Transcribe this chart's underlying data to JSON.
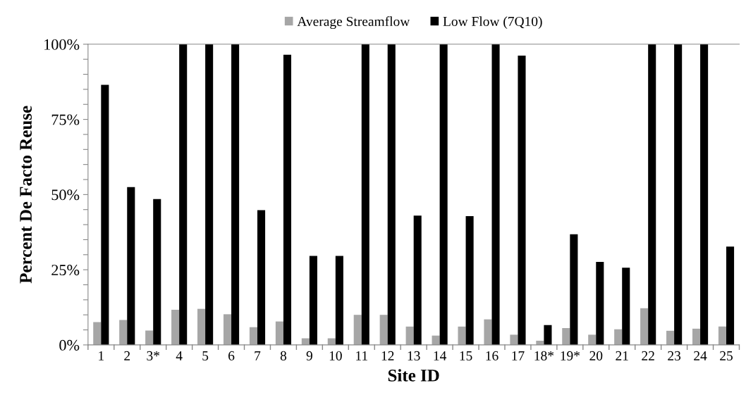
{
  "chart_data": {
    "type": "bar",
    "xlabel": "Site ID",
    "ylabel": "Percent De Facto Reuse",
    "categories": [
      "1",
      "2",
      "3*",
      "4",
      "5",
      "6",
      "7",
      "8",
      "9",
      "10",
      "11",
      "12",
      "13",
      "14",
      "15",
      "16",
      "17",
      "18*",
      "19*",
      "20",
      "21",
      "22",
      "23",
      "24",
      "25"
    ],
    "series": [
      {
        "name": "Average Streamflow",
        "color": "#a6a6a6",
        "values": [
          7.6,
          8.3,
          4.8,
          11.7,
          12.0,
          10.2,
          5.9,
          7.8,
          2.2,
          2.2,
          10.0,
          10.0,
          6.1,
          3.1,
          6.1,
          8.5,
          3.4,
          1.4,
          5.6,
          3.4,
          5.2,
          12.2,
          4.7,
          5.4,
          6.1
        ]
      },
      {
        "name": "Low Flow (7Q10)",
        "color": "#000000",
        "values": [
          86.5,
          52.5,
          48.5,
          100,
          100,
          100,
          44.8,
          96.5,
          29.6,
          29.6,
          100,
          100,
          43,
          100,
          42.8,
          100,
          96.2,
          6.6,
          36.8,
          27.6,
          25.7,
          100,
          100,
          100,
          32.7
        ]
      }
    ],
    "ylim": [
      0,
      100
    ],
    "yticks": [
      {
        "value": 0,
        "label": "0%"
      },
      {
        "value": 5,
        "label": null
      },
      {
        "value": 10,
        "label": null
      },
      {
        "value": 15,
        "label": null
      },
      {
        "value": 20,
        "label": null
      },
      {
        "value": 25,
        "label": "25%"
      },
      {
        "value": 30,
        "label": null
      },
      {
        "value": 35,
        "label": null
      },
      {
        "value": 40,
        "label": null
      },
      {
        "value": 45,
        "label": null
      },
      {
        "value": 50,
        "label": "50%"
      },
      {
        "value": 55,
        "label": null
      },
      {
        "value": 60,
        "label": null
      },
      {
        "value": 65,
        "label": null
      },
      {
        "value": 70,
        "label": null
      },
      {
        "value": 75,
        "label": "75%"
      },
      {
        "value": 80,
        "label": null
      },
      {
        "value": 85,
        "label": null
      },
      {
        "value": 90,
        "label": null
      },
      {
        "value": 95,
        "label": null
      },
      {
        "value": 100,
        "label": "100%"
      }
    ],
    "legend": "top"
  }
}
